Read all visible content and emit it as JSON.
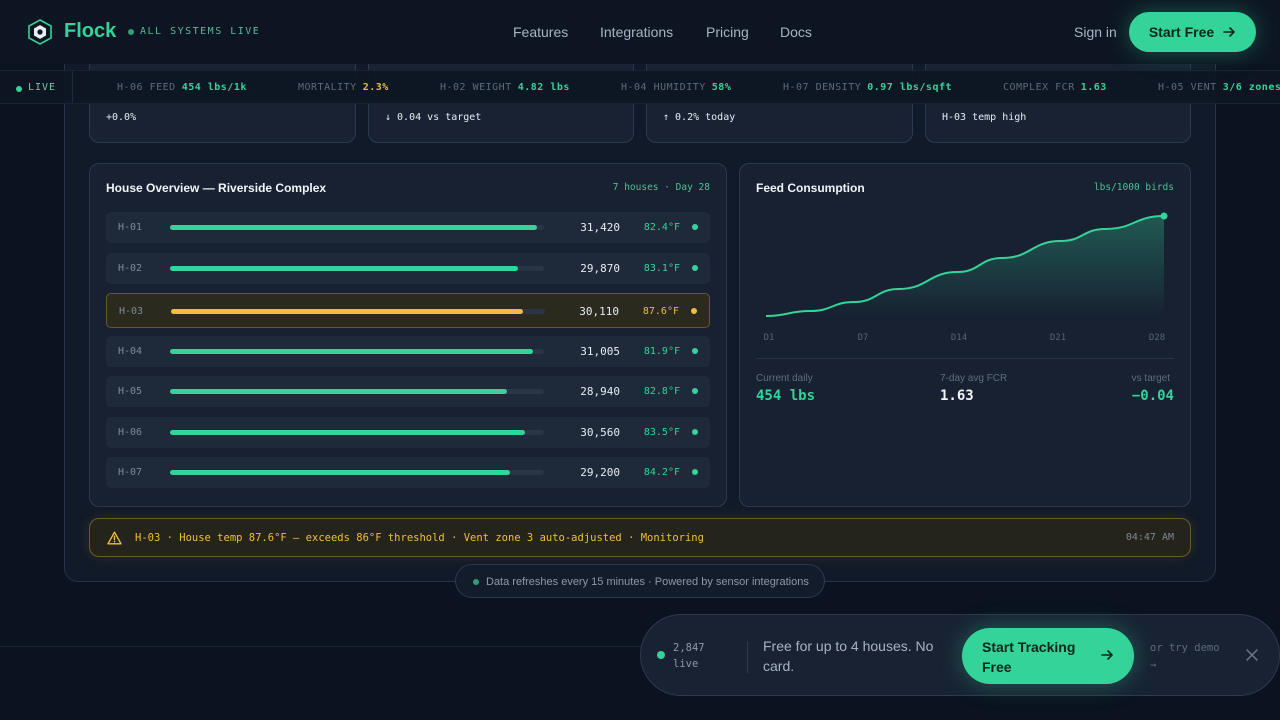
{
  "nav": {
    "brand": "Flock",
    "status": "ALL SYSTEMS LIVE",
    "links": [
      "Features",
      "Integrations",
      "Pricing",
      "Docs"
    ],
    "sign_in": "Sign in",
    "cta": "Start Free"
  },
  "ticker": {
    "live": "LIVE",
    "items": [
      {
        "key": "H-06 FEED",
        "value": "454 lbs/1k",
        "color": "#34d399"
      },
      {
        "key": "MORTALITY",
        "value": "2.3%",
        "color": "#f0be3c"
      },
      {
        "key": "H-02 WEIGHT",
        "value": "4.82 lbs",
        "color": "#34d399"
      },
      {
        "key": "H-04 HUMIDITY",
        "value": "58%",
        "color": "#34d399"
      },
      {
        "key": "H-07 DENSITY",
        "value": "0.97 lbs/sqft",
        "color": "#34d399"
      },
      {
        "key": "COMPLEX FCR",
        "value": "1.63",
        "color": "#34d399"
      },
      {
        "key": "H-05 VENT",
        "value": "3/6 zones",
        "color": "#34d399"
      }
    ]
  },
  "kpis": [
    {
      "sub": "+0.0%",
      "color": "#34d399"
    },
    {
      "sub": "↓ 0.04 vs target",
      "color": "#34d399"
    },
    {
      "sub": "↑ 0.2% today",
      "color": "#f0be3c"
    },
    {
      "sub": "H-03 temp high",
      "color": "#f0be3c"
    }
  ],
  "houses": {
    "title": "House Overview — Riverside Complex",
    "meta": "7 houses · Day 28",
    "rows": [
      {
        "id": "H-01",
        "count": "31,420",
        "temp": "82.4°F",
        "fill": 0.98,
        "status": "ok"
      },
      {
        "id": "H-02",
        "count": "29,870",
        "temp": "83.1°F",
        "fill": 0.93,
        "status": "ok"
      },
      {
        "id": "H-03",
        "count": "30,110",
        "temp": "87.6°F",
        "fill": 0.94,
        "status": "warn"
      },
      {
        "id": "H-04",
        "count": "31,005",
        "temp": "81.9°F",
        "fill": 0.97,
        "status": "ok"
      },
      {
        "id": "H-05",
        "count": "28,940",
        "temp": "82.8°F",
        "fill": 0.9,
        "status": "ok"
      },
      {
        "id": "H-06",
        "count": "30,560",
        "temp": "83.5°F",
        "fill": 0.95,
        "status": "ok"
      },
      {
        "id": "H-07",
        "count": "29,200",
        "temp": "84.2°F",
        "fill": 0.91,
        "status": "ok"
      }
    ]
  },
  "chart_data": {
    "type": "area",
    "title": "Feed Consumption",
    "unit": "lbs/1000 birds",
    "categories": [
      "D1",
      "D7",
      "D14",
      "D21",
      "D28"
    ],
    "x": [
      1,
      4,
      7,
      10,
      14,
      17,
      21,
      24,
      28
    ],
    "y": [
      0.0,
      0.05,
      0.14,
      0.27,
      0.44,
      0.58,
      0.75,
      0.87,
      1.0
    ],
    "y_scale": "relative"
  },
  "feed_stats": [
    {
      "label": "Current daily",
      "value": "454 lbs",
      "color": "#34d399"
    },
    {
      "label": "7-day avg FCR",
      "value": "1.63",
      "color": "#f1f5f9"
    },
    {
      "label": "vs target",
      "value": "−0.04",
      "color": "#34d399"
    }
  ],
  "alert": {
    "text": "H-03 · House temp 87.6°F — exceeds 86°F threshold · Vent zone 3 auto-adjusted · Monitoring",
    "time": "04:47 AM"
  },
  "refresh": "Data refreshes every 15 minutes · Powered by sensor integrations",
  "cta": {
    "count": "2,847 live",
    "message": "Free for up to 4 houses. No card.",
    "button": "Start Tracking Free",
    "demo": "or try demo →"
  },
  "colors": {
    "accent": "#34d399",
    "warn": "#f0be3c"
  }
}
